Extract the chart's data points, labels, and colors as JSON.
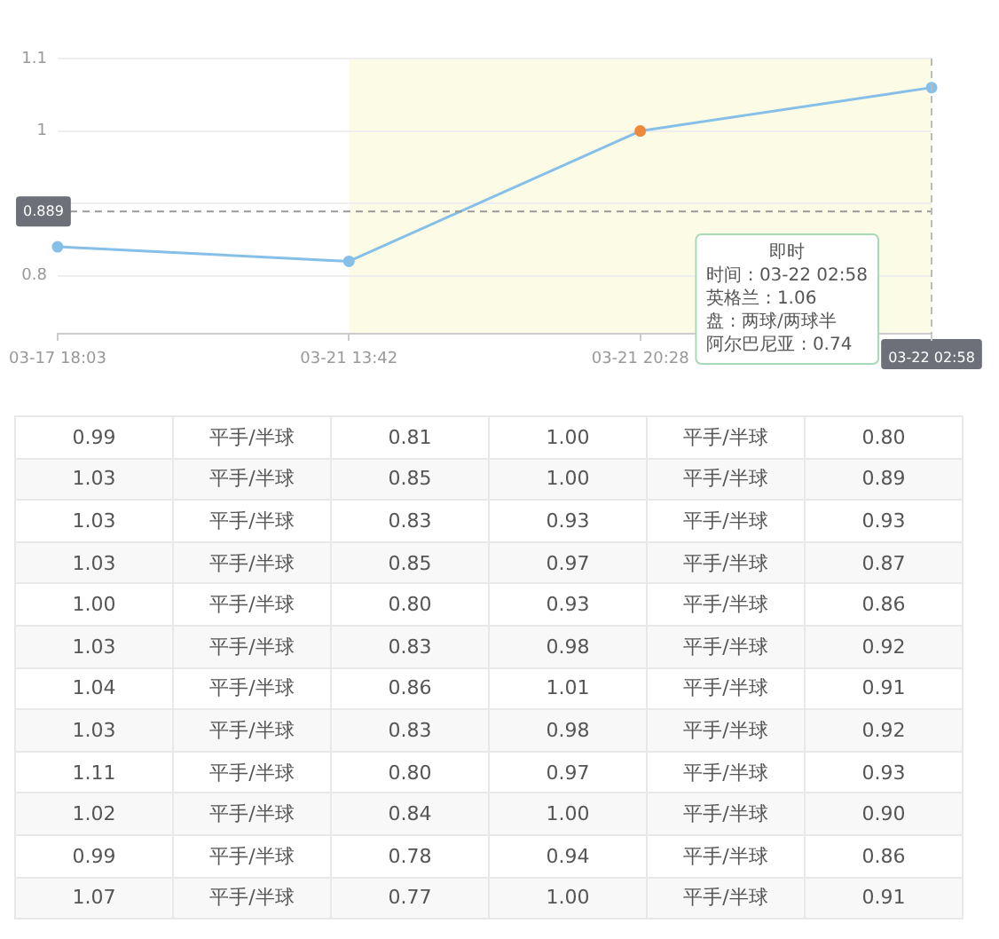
{
  "chart_data": [
    {
      "type": "line",
      "categories": [
        "03-17 18:03",
        "03-21 13:42",
        "03-21 20:28",
        "03-22 02:58"
      ],
      "series": [
        {
          "color": "#86bfe8",
          "colors": [
            "#86bfe8",
            "#86bfe8",
            "#f0883a",
            "#86bfe8"
          ],
          "values": [
            0.84,
            0.82,
            1.0,
            1.06
          ]
        }
      ],
      "ylim": [
        0.72,
        1.1
      ],
      "yticks": [
        0.8,
        {
          "value": 0.9,
          "label": null
        },
        1,
        1.1
      ],
      "grid": "y",
      "marker": "circle",
      "bands": [
        {
          "axis": "x",
          "from": "03-21 13:42",
          "to": "03-22 02:58",
          "color": "#fcfce6"
        }
      ],
      "ref_lines": [
        {
          "axis": "y",
          "value": 0.889,
          "label": "0.889",
          "color": "#999999",
          "line_style": "dashed"
        },
        {
          "axis": "x",
          "value": "03-22 02:58",
          "color": "#bbbbbb",
          "line_style": "dashed"
        }
      ],
      "annotations": [
        "即时",
        "时间 : 03-22 02:58",
        "英格兰 : 1.06",
        "盘 : 两球/两球半",
        "阿尔巴尼亚 : 0.74"
      ]
    },
    {
      "type": "heatmap",
      "categories": [
        null,
        null,
        null,
        null,
        null,
        null
      ],
      "y_categories": [
        null,
        null,
        null,
        null,
        null,
        null,
        null,
        null,
        null,
        null,
        null,
        null
      ],
      "cells": [
        [
          0.99,
          null,
          0.81,
          1.0,
          null,
          0.8
        ],
        [
          1.03,
          null,
          0.85,
          1.0,
          null,
          0.89
        ],
        [
          1.03,
          null,
          0.83,
          0.93,
          null,
          0.93
        ],
        [
          1.03,
          null,
          0.85,
          0.97,
          null,
          0.87
        ],
        [
          1.0,
          null,
          0.8,
          0.93,
          null,
          0.86
        ],
        [
          1.03,
          null,
          0.83,
          0.98,
          null,
          0.92
        ],
        [
          1.04,
          null,
          0.86,
          1.01,
          null,
          0.91
        ],
        [
          1.03,
          null,
          0.83,
          0.98,
          null,
          0.92
        ],
        [
          1.11,
          null,
          0.8,
          0.97,
          null,
          0.93
        ],
        [
          1.02,
          null,
          0.84,
          1.0,
          null,
          0.9
        ],
        [
          0.99,
          null,
          0.78,
          0.94,
          null,
          0.86
        ],
        [
          1.07,
          null,
          0.77,
          1.0,
          null,
          0.91
        ]
      ],
      "cell_labels": [
        [
          "0.99",
          "平手/半球",
          "0.81",
          "1.00",
          "平手/半球",
          "0.80"
        ],
        [
          "1.03",
          "平手/半球",
          "0.85",
          "1.00",
          "平手/半球",
          "0.89"
        ],
        [
          "1.03",
          "平手/半球",
          "0.83",
          "0.93",
          "平手/半球",
          "0.93"
        ],
        [
          "1.03",
          "平手/半球",
          "0.85",
          "0.97",
          "平手/半球",
          "0.87"
        ],
        [
          "1.00",
          "平手/半球",
          "0.80",
          "0.93",
          "平手/半球",
          "0.86"
        ],
        [
          "1.03",
          "平手/半球",
          "0.83",
          "0.98",
          "平手/半球",
          "0.92"
        ],
        [
          "1.04",
          "平手/半球",
          "0.86",
          "1.01",
          "平手/半球",
          "0.91"
        ],
        [
          "1.03",
          "平手/半球",
          "0.83",
          "0.98",
          "平手/半球",
          "0.92"
        ],
        [
          "1.11",
          "平手/半球",
          "0.80",
          "0.97",
          "平手/半球",
          "0.93"
        ],
        [
          "1.02",
          "平手/半球",
          "0.84",
          "1.00",
          "平手/半球",
          "0.90"
        ],
        [
          "0.99",
          "平手/半球",
          "0.78",
          "0.94",
          "平手/半球",
          "0.86"
        ],
        [
          "1.07",
          "平手/半球",
          "0.77",
          "1.00",
          "平手/半球",
          "0.91"
        ]
      ]
    }
  ]
}
